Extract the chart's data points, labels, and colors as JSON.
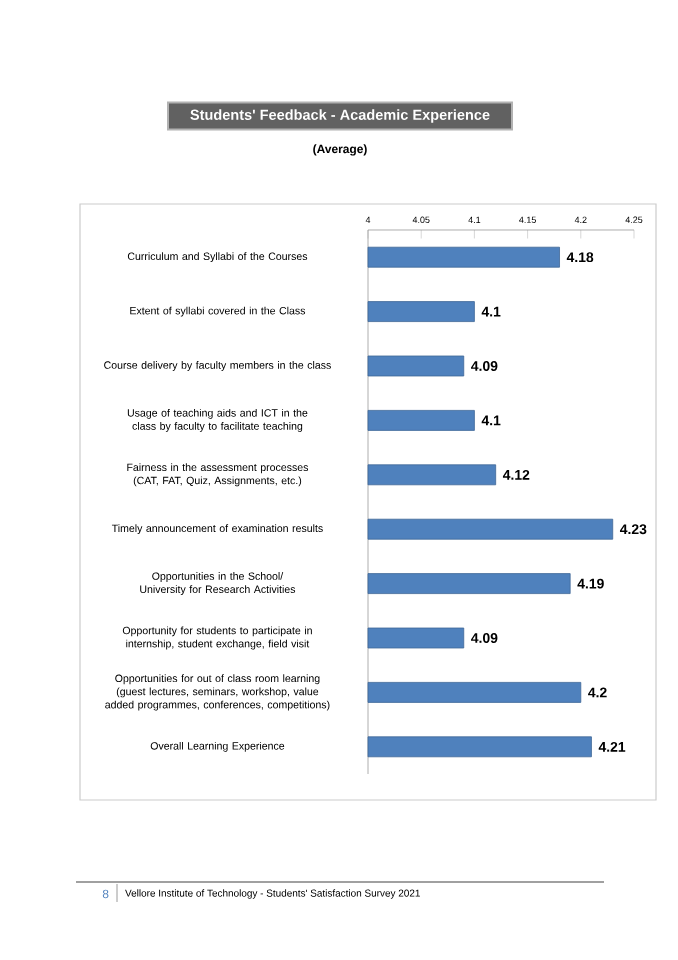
{
  "chart_data": {
    "type": "bar",
    "orientation": "horizontal",
    "title": "Students' Feedback - Academic Experience",
    "subtitle": "(Average)",
    "categories": [
      "Curriculum and  Syllabi of the Courses",
      "Extent of syllabi covered in the Class",
      "Course delivery by faculty members in the class",
      "Usage of teaching aids and ICT in the class by faculty to facilitate teaching",
      "Fairness in the assessment processes (CAT, FAT, Quiz, Assignments, etc.)",
      "Timely announcement of examination results",
      "Opportunities in the School/ University for Research Activities",
      "Opportunity for students to participate in internship, student exchange, field visit",
      "Opportunities for out of class room learning (guest lectures, seminars, workshop, value added programmes, conferences, competitions)",
      "Overall Learning Experience"
    ],
    "values": [
      4.18,
      4.1,
      4.09,
      4.1,
      4.12,
      4.23,
      4.19,
      4.09,
      4.2,
      4.21
    ],
    "color": "#4f81bd",
    "data_labels": true,
    "xlim": [
      4,
      4.25
    ],
    "xticks": [
      4,
      4.05,
      4.1,
      4.15,
      4.2,
      4.25
    ],
    "grid": false,
    "annotations": [
      "8",
      "Vellore Institute of Technology - Students' Satisfaction Survey 2021"
    ]
  }
}
